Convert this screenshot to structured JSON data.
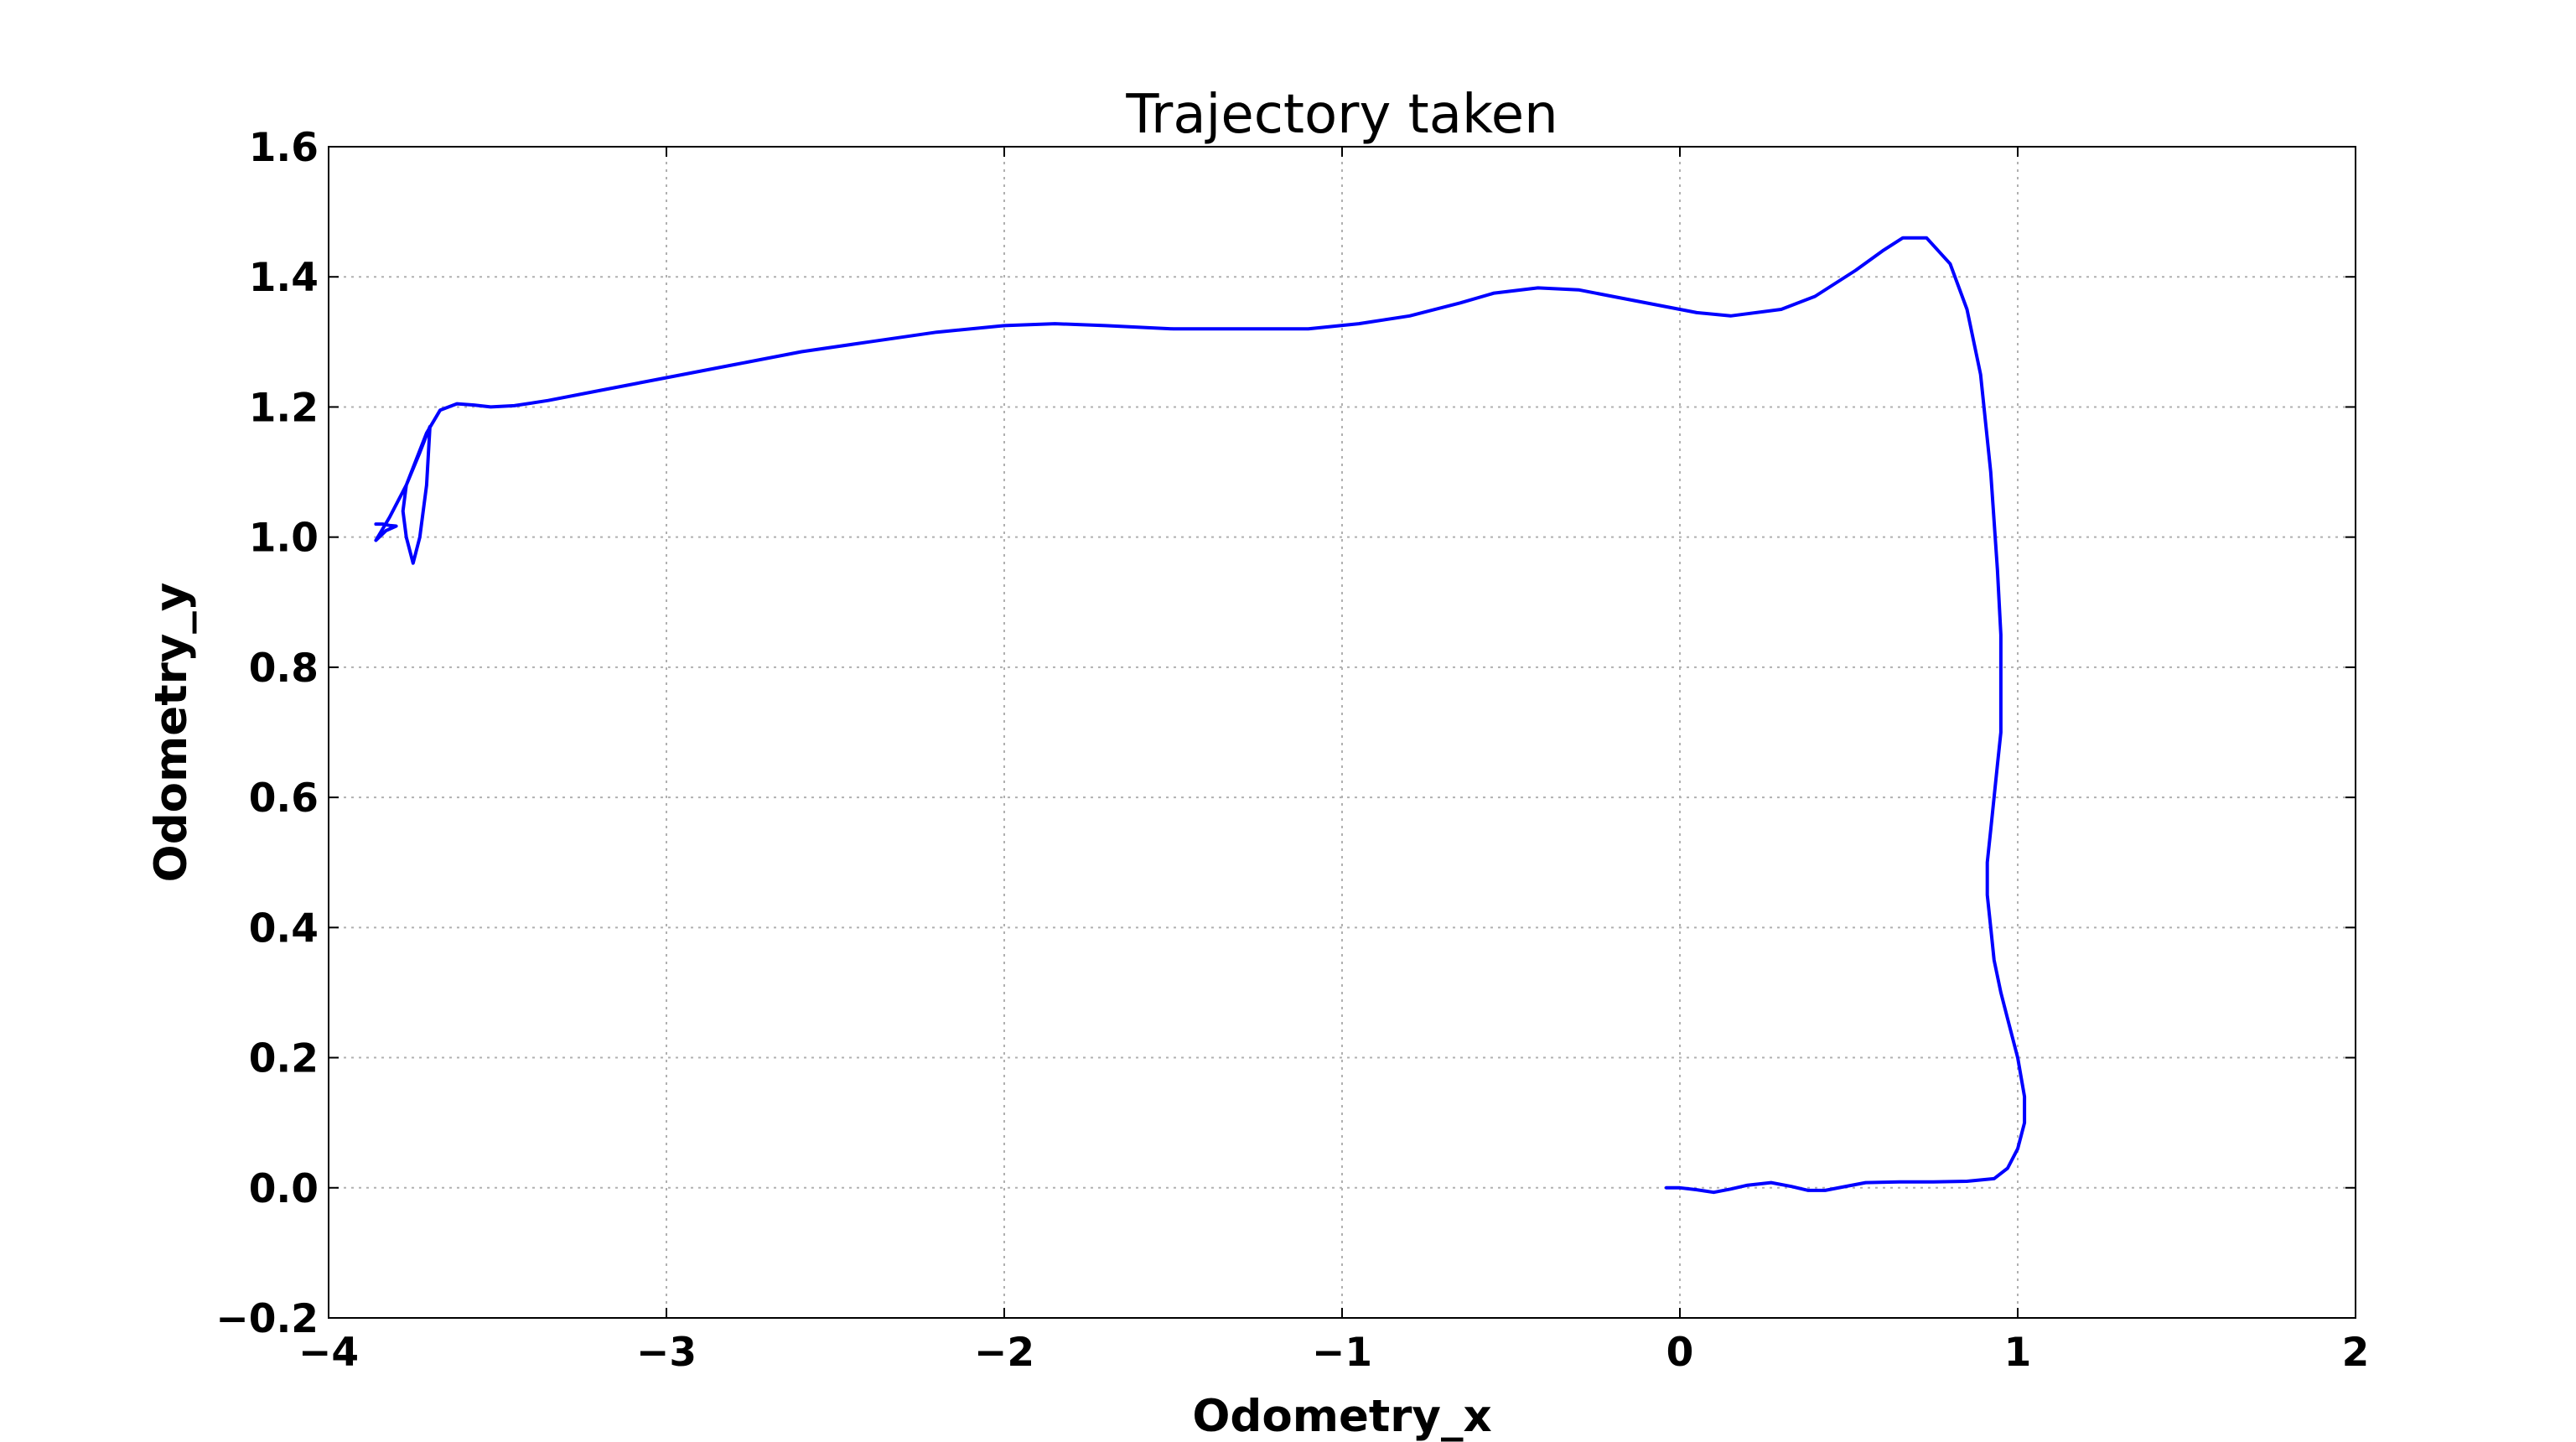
{
  "chart_data": {
    "type": "line",
    "title": "Trajectory taken",
    "xlabel": "Odometry_x",
    "ylabel": "Odometry_y",
    "xlim": [
      -4,
      2
    ],
    "ylim": [
      -0.2,
      1.6
    ],
    "grid": true,
    "xticks": [
      -4,
      -3,
      -2,
      -1,
      0,
      1,
      2
    ],
    "xtick_labels": [
      "−4",
      "−3",
      "−2",
      "−1",
      "0",
      "1",
      "2"
    ],
    "yticks": [
      -0.2,
      0.0,
      0.2,
      0.4,
      0.6,
      0.8,
      1.0,
      1.2,
      1.4,
      1.6
    ],
    "ytick_labels": [
      "−0.2",
      "0.0",
      "0.2",
      "0.4",
      "0.6",
      "0.8",
      "1.0",
      "1.2",
      "1.4",
      "1.6"
    ],
    "series": [
      {
        "color": "#0000ff",
        "x": [
          -0.04,
          0.0,
          0.05,
          0.1,
          0.15,
          0.2,
          0.27,
          0.33,
          0.38,
          0.43,
          0.48,
          0.55,
          0.65,
          0.75,
          0.85,
          0.93,
          0.97,
          1.0,
          1.02,
          1.02,
          1.0,
          0.97,
          0.95,
          0.93,
          0.92,
          0.91,
          0.91,
          0.92,
          0.93,
          0.94,
          0.95,
          0.95,
          0.95,
          0.94,
          0.92,
          0.89,
          0.85,
          0.8,
          0.73,
          0.66,
          0.6,
          0.52,
          0.4,
          0.3,
          0.15,
          0.05,
          -0.05,
          -0.2,
          -0.3,
          -0.42,
          -0.55,
          -0.65,
          -0.8,
          -0.95,
          -1.1,
          -1.3,
          -1.5,
          -1.7,
          -1.85,
          -2.0,
          -2.2,
          -2.4,
          -2.6,
          -2.8,
          -3.0,
          -3.2,
          -3.35,
          -3.45,
          -3.52,
          -3.57,
          -3.62,
          -3.67,
          -3.71,
          -3.74,
          -3.77,
          -3.78,
          -3.77,
          -3.75,
          -3.73,
          -3.71,
          -3.7,
          -3.73,
          -3.77,
          -3.82,
          -3.86,
          -3.83,
          -3.8,
          -3.82,
          -3.84,
          -3.86
        ],
        "y": [
          0.0,
          0.0,
          -0.003,
          -0.007,
          -0.002,
          0.004,
          0.008,
          0.002,
          -0.004,
          -0.004,
          0.001,
          0.008,
          0.009,
          0.009,
          0.01,
          0.014,
          0.03,
          0.06,
          0.1,
          0.14,
          0.2,
          0.26,
          0.3,
          0.35,
          0.4,
          0.45,
          0.5,
          0.55,
          0.6,
          0.65,
          0.7,
          0.75,
          0.85,
          0.95,
          1.1,
          1.25,
          1.35,
          1.42,
          1.46,
          1.46,
          1.44,
          1.41,
          1.37,
          1.35,
          1.34,
          1.345,
          1.355,
          1.37,
          1.38,
          1.383,
          1.375,
          1.36,
          1.34,
          1.328,
          1.32,
          1.32,
          1.32,
          1.325,
          1.328,
          1.325,
          1.315,
          1.3,
          1.285,
          1.265,
          1.245,
          1.225,
          1.21,
          1.202,
          1.2,
          1.203,
          1.205,
          1.195,
          1.16,
          1.12,
          1.08,
          1.04,
          1.0,
          0.96,
          1.0,
          1.08,
          1.17,
          1.13,
          1.08,
          1.03,
          0.995,
          1.01,
          1.017,
          1.018,
          1.02,
          1.02
        ]
      }
    ]
  }
}
